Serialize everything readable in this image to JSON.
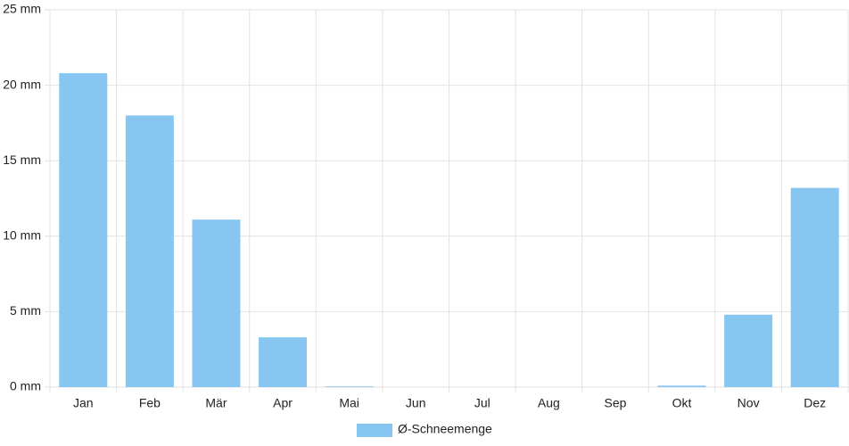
{
  "chart_data": {
    "type": "bar",
    "categories": [
      "Jan",
      "Feb",
      "Mär",
      "Apr",
      "Mai",
      "Jun",
      "Jul",
      "Aug",
      "Sep",
      "Okt",
      "Nov",
      "Dez"
    ],
    "series": [
      {
        "name": "Ø-Schneemenge",
        "color": "#88c6f2",
        "values": [
          20.8,
          18.0,
          11.1,
          3.3,
          0.05,
          0,
          0,
          0,
          0,
          0.1,
          4.8,
          13.2
        ]
      }
    ],
    "ylim": [
      0,
      25
    ],
    "yticks": [
      {
        "value": 0,
        "label": "0 mm"
      },
      {
        "value": 5,
        "label": "5 mm"
      },
      {
        "value": 10,
        "label": "10 mm"
      },
      {
        "value": 15,
        "label": "15 mm"
      },
      {
        "value": 20,
        "label": "20 mm"
      },
      {
        "value": 25,
        "label": "25 mm"
      }
    ],
    "grid": true,
    "legend": "bottom"
  }
}
